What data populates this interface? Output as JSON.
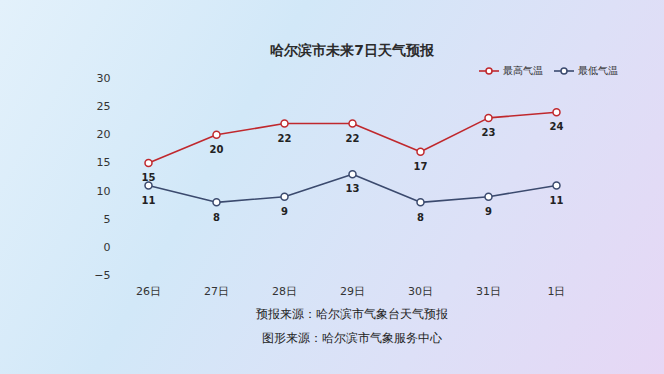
{
  "chart_data": {
    "type": "line",
    "title": "哈尔滨市未来7日天气预报",
    "categories": [
      "26日",
      "27日",
      "28日",
      "29日",
      "30日",
      "31日",
      "1日"
    ],
    "series": [
      {
        "name": "最高气温",
        "color": "#c0282d",
        "marker": "circle",
        "values": [
          15,
          20,
          22,
          22,
          17,
          23,
          24
        ]
      },
      {
        "name": "最低气温",
        "color": "#3b4a6e",
        "marker": "circle",
        "values": [
          11,
          8,
          9,
          13,
          8,
          9,
          11
        ]
      }
    ],
    "ylim": [
      -5,
      30
    ],
    "yticks": [
      -5,
      0,
      5,
      10,
      15,
      20,
      25,
      30
    ],
    "grid": false,
    "legend": "top-right",
    "data_labels": true,
    "annotations": [
      "预报来源：哈尔滨市气象台天气预报",
      "图形来源：哈尔滨市气象服务中心"
    ]
  }
}
